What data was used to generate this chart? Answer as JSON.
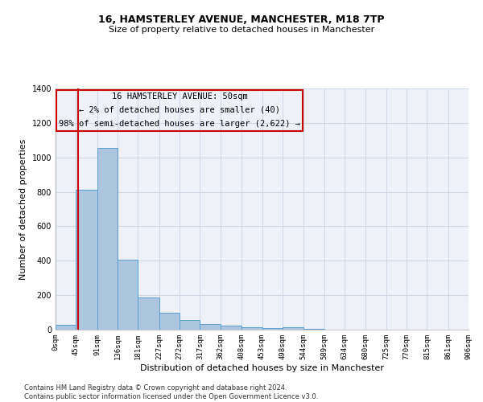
{
  "title": "16, HAMSTERLEY AVENUE, MANCHESTER, M18 7TP",
  "subtitle": "Size of property relative to detached houses in Manchester",
  "xlabel": "Distribution of detached houses by size in Manchester",
  "ylabel": "Number of detached properties",
  "bar_edges": [
    0,
    45,
    91,
    136,
    181,
    227,
    272,
    317,
    362,
    408,
    453,
    498,
    544,
    589,
    634,
    680,
    725,
    770,
    815,
    861,
    906
  ],
  "bar_heights": [
    30,
    810,
    1055,
    405,
    185,
    100,
    55,
    35,
    25,
    15,
    10,
    15,
    5,
    2,
    1,
    1,
    0,
    0,
    0,
    0
  ],
  "bar_color": "#adc6e0",
  "bar_edge_color": "#5a9fd4",
  "grid_color": "#d0d8e8",
  "background_color": "#eef2f8",
  "vline_x": 50,
  "vline_color": "#cc0000",
  "annotation_line1": "16 HAMSTERLEY AVENUE: 50sqm",
  "annotation_line2": "← 2% of detached houses are smaller (40)",
  "annotation_line3": "98% of semi-detached houses are larger (2,622) →",
  "footnote": "Contains HM Land Registry data © Crown copyright and database right 2024.\nContains public sector information licensed under the Open Government Licence v3.0.",
  "ylim": [
    0,
    1400
  ],
  "tick_labels": [
    "0sqm",
    "45sqm",
    "91sqm",
    "136sqm",
    "181sqm",
    "227sqm",
    "272sqm",
    "317sqm",
    "362sqm",
    "408sqm",
    "453sqm",
    "498sqm",
    "544sqm",
    "589sqm",
    "634sqm",
    "680sqm",
    "725sqm",
    "770sqm",
    "815sqm",
    "861sqm",
    "906sqm"
  ],
  "title_fontsize": 9,
  "subtitle_fontsize": 8,
  "ylabel_fontsize": 8,
  "xlabel_fontsize": 8,
  "tick_fontsize": 6.5,
  "footnote_fontsize": 6,
  "annot_fontsize": 7.5
}
